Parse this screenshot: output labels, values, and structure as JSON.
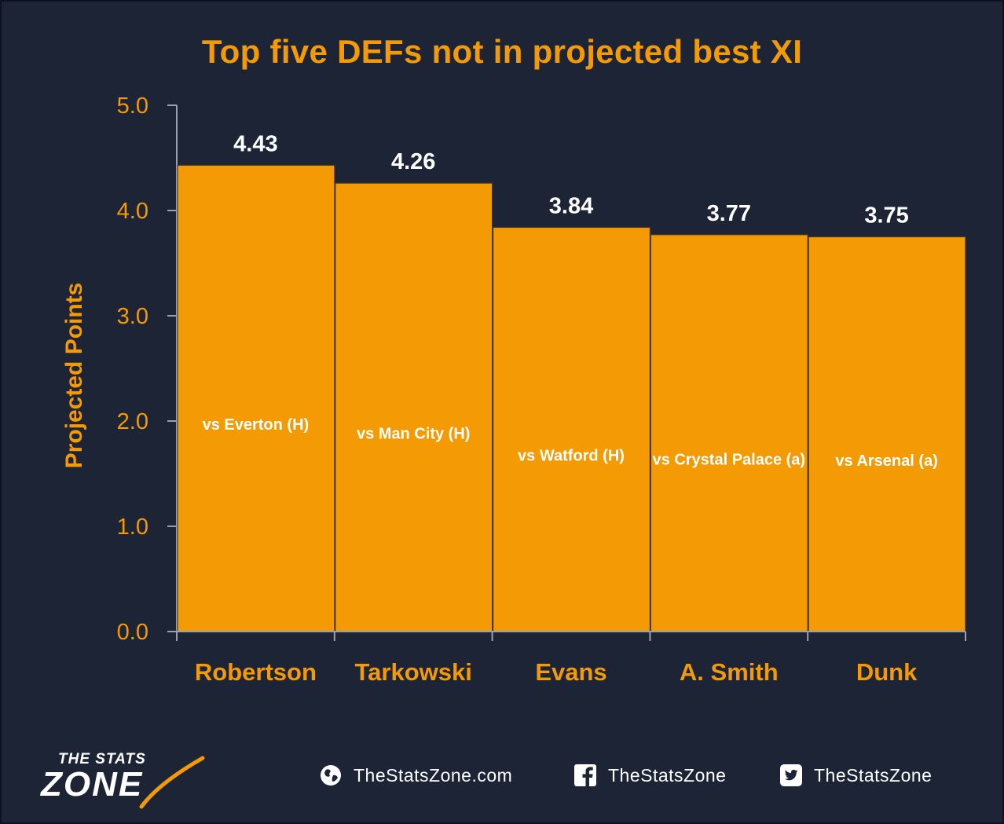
{
  "chart_data": {
    "type": "bar",
    "title": "Top five DEFs not in projected best XI",
    "ylabel": "Projected Points",
    "xlabel": "",
    "ylim": [
      0,
      5
    ],
    "yticks": [
      "0.0",
      "1.0",
      "2.0",
      "3.0",
      "4.0",
      "5.0"
    ],
    "grid": false,
    "categories": [
      "Robertson",
      "Tarkowski",
      "Evans",
      "A. Smith",
      "Dunk"
    ],
    "values": [
      4.43,
      4.26,
      3.84,
      3.77,
      3.75
    ],
    "value_labels": [
      "4.43",
      "4.26",
      "3.84",
      "3.77",
      "3.75"
    ],
    "fixtures": [
      "vs Everton (H)",
      "vs Man City (H)",
      "vs Watford (H)",
      "vs Crystal Palace (a)",
      "vs Arsenal (a)"
    ],
    "colors": {
      "bar": "#f39a05",
      "background": "#1c2436",
      "text": "#f39a05",
      "value_text": "#ffffff"
    }
  },
  "footer": {
    "logo_line1": "THE STATS",
    "logo_line2": "ZONE",
    "website": "TheStatsZone.com",
    "facebook": "TheStatsZone",
    "twitter": "TheStatsZone",
    "icons": [
      "globe-icon",
      "facebook-icon",
      "twitter-icon"
    ]
  }
}
